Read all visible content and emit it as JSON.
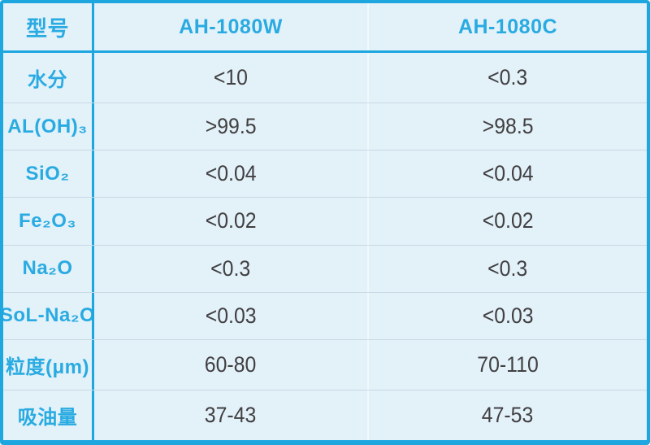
{
  "colors": {
    "accent_border": "#1ea7df",
    "accent_text": "#29abe2",
    "cell_background": "#e3f1f9",
    "row_divider": "#c9dae4",
    "light_column_divider": "#f2f9fd",
    "value_text": "#414042"
  },
  "table": {
    "header": {
      "model_label": "型号",
      "product_w": "AH-1080W",
      "product_c": "AH-1080C"
    },
    "rows": [
      {
        "label": "水分",
        "ah_1080w": "<10",
        "ah_1080c": "<0.3"
      },
      {
        "label": "AL(OH)₃",
        "ah_1080w": ">99.5",
        "ah_1080c": ">98.5"
      },
      {
        "label": "SiO₂",
        "ah_1080w": "<0.04",
        "ah_1080c": "<0.04"
      },
      {
        "label": "Fe₂O₃",
        "ah_1080w": "<0.02",
        "ah_1080c": "<0.02"
      },
      {
        "label": "Na₂O",
        "ah_1080w": "<0.3",
        "ah_1080c": "<0.3"
      },
      {
        "label": "SoL-Na₂O",
        "ah_1080w": "<0.03",
        "ah_1080c": "<0.03"
      },
      {
        "label": "粒度(μm)",
        "ah_1080w": "60-80",
        "ah_1080c": "70-110"
      },
      {
        "label": "吸油量",
        "ah_1080w": "37-43",
        "ah_1080c": "47-53"
      }
    ]
  },
  "chart_data": {
    "type": "table",
    "title": "",
    "columns": [
      "型号",
      "AH-1080W",
      "AH-1080C"
    ],
    "rows": [
      [
        "水分",
        "<10",
        "<0.3"
      ],
      [
        "AL(OH)₃",
        ">99.5",
        ">98.5"
      ],
      [
        "SiO₂",
        "<0.04",
        "<0.04"
      ],
      [
        "Fe₂O₃",
        "<0.02",
        "<0.02"
      ],
      [
        "Na₂O",
        "<0.3",
        "<0.3"
      ],
      [
        "SoL-Na₂O",
        "<0.03",
        "<0.03"
      ],
      [
        "粒度(μm)",
        "60-80",
        "70-110"
      ],
      [
        "吸油量",
        "37-43",
        "47-53"
      ]
    ]
  }
}
